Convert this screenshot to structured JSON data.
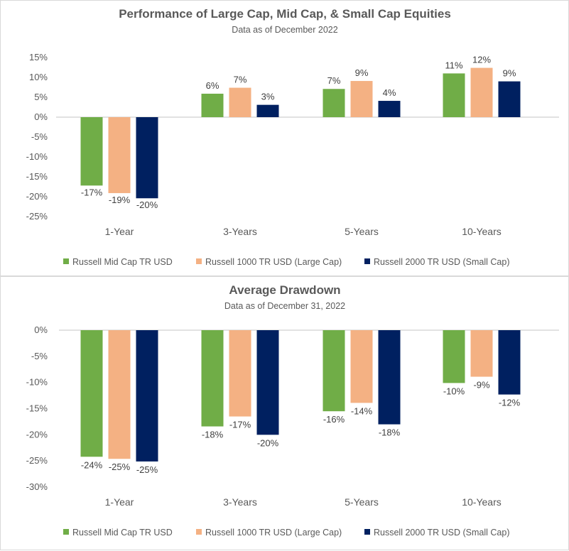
{
  "colors": {
    "mid_cap": "#70AD47",
    "large_cap": "#F4B183",
    "small_cap": "#002060",
    "axis_line": "#d9d9d9",
    "text": "#595959"
  },
  "chart_data": [
    {
      "type": "bar",
      "title": "Performance of Large Cap, Mid Cap, & Small Cap Equities",
      "subtitle": "Data as of December  2022",
      "xlabel": "",
      "ylabel": "",
      "categories": [
        "1-Year",
        "3-Years",
        "5-Years",
        "10-Years"
      ],
      "ylim": [
        -25,
        15
      ],
      "yticks": [
        15,
        10,
        5,
        0,
        -5,
        -10,
        -15,
        -20,
        -25
      ],
      "ytick_labels": [
        "15%",
        "10%",
        "5%",
        "0%",
        "-5%",
        "-10%",
        "-15%",
        "-20%",
        "-25%"
      ],
      "grid": false,
      "legend_position": "bottom",
      "series": [
        {
          "name": "Russell Mid Cap TR USD",
          "color_key": "mid_cap",
          "values": [
            -17.2,
            5.9,
            7.1,
            11.0
          ],
          "labels": [
            "-17%",
            "6%",
            "7%",
            "11%"
          ]
        },
        {
          "name": "Russell 1000 TR USD (Large Cap)",
          "color_key": "large_cap",
          "values": [
            -19.1,
            7.4,
            9.1,
            12.4
          ],
          "labels": [
            "-19%",
            "7%",
            "9%",
            "12%"
          ]
        },
        {
          "name": "Russell 2000 TR USD (Small Cap)",
          "color_key": "small_cap",
          "values": [
            -20.4,
            3.1,
            4.1,
            9.0
          ],
          "labels": [
            "-20%",
            "3%",
            "4%",
            "9%"
          ]
        }
      ]
    },
    {
      "type": "bar",
      "title": "Average Drawdown",
      "subtitle": "Data as of December  31, 2022",
      "xlabel": "",
      "ylabel": "",
      "categories": [
        "1-Year",
        "3-Years",
        "5-Years",
        "10-Years"
      ],
      "ylim": [
        -30,
        0
      ],
      "yticks": [
        0,
        -5,
        -10,
        -15,
        -20,
        -25,
        -30
      ],
      "ytick_labels": [
        "0%",
        "-5%",
        "-10%",
        "-15%",
        "-20%",
        "-25%",
        "-30%"
      ],
      "grid": false,
      "legend_position": "bottom",
      "series": [
        {
          "name": "Russell Mid Cap TR USD",
          "color_key": "mid_cap",
          "values": [
            -24.2,
            -18.4,
            -15.5,
            -10.1
          ],
          "labels": [
            "-24%",
            "-18%",
            "-16%",
            "-10%"
          ]
        },
        {
          "name": "Russell 1000 TR USD (Large Cap)",
          "color_key": "large_cap",
          "values": [
            -24.6,
            -16.5,
            -13.9,
            -8.9
          ],
          "labels": [
            "-25%",
            "-17%",
            "-14%",
            "-9%"
          ]
        },
        {
          "name": "Russell 2000 TR USD (Small Cap)",
          "color_key": "small_cap",
          "values": [
            -25.1,
            -20.0,
            -18.0,
            -12.3
          ],
          "labels": [
            "-25%",
            "-20%",
            "-18%",
            "-12%"
          ]
        }
      ]
    }
  ]
}
